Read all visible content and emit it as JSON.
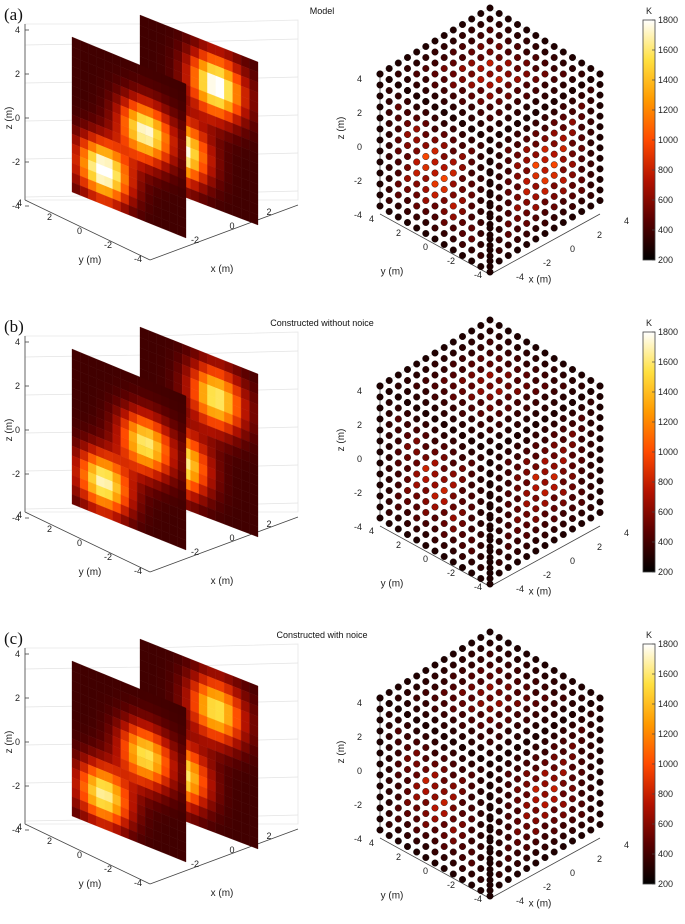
{
  "colors": {
    "colormap": [
      "#000000",
      "#5a0000",
      "#b41200",
      "#ff4a00",
      "#ff9a00",
      "#ffe040",
      "#ffffff"
    ]
  },
  "chart_data": [
    {
      "type": "heatmap",
      "panel_label": "(a)",
      "title": "Model",
      "slices": {
        "xlabel": "x (m)",
        "ylabel": "y (m)",
        "zlabel": "z (m)",
        "xticks": [
          "-2",
          "0",
          "2"
        ],
        "yticks": [
          "4",
          "2",
          "0",
          "-2",
          "-4"
        ],
        "zticks": [
          "4",
          "2",
          "0",
          "-2",
          "-4"
        ],
        "hot_spots": [
          {
            "slice": "back",
            "u": 0.65,
            "v": 0.25,
            "peak_K": 1750
          },
          {
            "slice": "back",
            "u": 0.35,
            "v": 0.72,
            "peak_K": 1700
          },
          {
            "slice": "front",
            "u": 0.65,
            "v": 0.42,
            "peak_K": 1650
          },
          {
            "slice": "front",
            "u": 0.28,
            "v": 0.78,
            "peak_K": 1800
          }
        ]
      },
      "cube": {
        "xlabel": "x (m)",
        "ylabel": "y (m)",
        "zlabel": "z (m)",
        "xticks": [
          "4",
          "2",
          "0",
          "-2",
          "-4"
        ],
        "yticks": [
          "4",
          "2",
          "0",
          "-2",
          "-4"
        ],
        "zticks": [
          "4",
          "2",
          "0",
          "-2",
          "-4"
        ]
      },
      "colorbar": {
        "unit": "K",
        "ticks": [
          "1800",
          "1600",
          "1400",
          "1200",
          "1000",
          "800",
          "600",
          "400",
          "200"
        ],
        "min": 200,
        "max": 1800
      }
    },
    {
      "type": "heatmap",
      "panel_label": "(b)",
      "title": "Constructed without noice",
      "slices": {
        "xlabel": "x (m)",
        "ylabel": "y (m)",
        "zlabel": "z (m)",
        "xticks": [
          "-2",
          "0",
          "2"
        ],
        "yticks": [
          "4",
          "2",
          "0",
          "-2",
          "-4"
        ],
        "zticks": [
          "4",
          "2",
          "0",
          "-2",
          "-4"
        ],
        "hot_spots": [
          {
            "slice": "back",
            "u": 0.65,
            "v": 0.25,
            "peak_K": 1500
          },
          {
            "slice": "back",
            "u": 0.35,
            "v": 0.72,
            "peak_K": 1550
          },
          {
            "slice": "front",
            "u": 0.65,
            "v": 0.42,
            "peak_K": 1500
          },
          {
            "slice": "front",
            "u": 0.28,
            "v": 0.78,
            "peak_K": 1600
          }
        ]
      },
      "cube": {
        "xlabel": "x (m)",
        "ylabel": "y (m)",
        "zlabel": "z (m)",
        "xticks": [
          "4",
          "2",
          "0",
          "-2",
          "-4"
        ],
        "yticks": [
          "4",
          "2",
          "0",
          "-2",
          "-4"
        ],
        "zticks": [
          "4",
          "2",
          "0",
          "-2",
          "-4"
        ]
      },
      "colorbar": {
        "unit": "K",
        "ticks": [
          "1800",
          "1600",
          "1400",
          "1200",
          "1000",
          "800",
          "600",
          "400",
          "200"
        ],
        "min": 200,
        "max": 1800
      }
    },
    {
      "type": "heatmap",
      "panel_label": "(c)",
      "title": "Constructed with noice",
      "slices": {
        "xlabel": "x (m)",
        "ylabel": "y (m)",
        "zlabel": "z (m)",
        "xticks": [
          "-2",
          "0",
          "2"
        ],
        "yticks": [
          "4",
          "2",
          "0",
          "-2",
          "-4"
        ],
        "zticks": [
          "4",
          "2",
          "0",
          "-2",
          "-4"
        ],
        "hot_spots": [
          {
            "slice": "back",
            "u": 0.65,
            "v": 0.25,
            "peak_K": 1450
          },
          {
            "slice": "back",
            "u": 0.35,
            "v": 0.72,
            "peak_K": 1500
          },
          {
            "slice": "front",
            "u": 0.65,
            "v": 0.42,
            "peak_K": 1450
          },
          {
            "slice": "front",
            "u": 0.28,
            "v": 0.78,
            "peak_K": 1550
          }
        ]
      },
      "cube": {
        "xlabel": "x (m)",
        "ylabel": "y (m)",
        "zlabel": "z (m)",
        "xticks": [
          "4",
          "2",
          "0",
          "-2",
          "-4"
        ],
        "yticks": [
          "4",
          "2",
          "0",
          "-2",
          "-4"
        ],
        "zticks": [
          "4",
          "2",
          "0",
          "-2",
          "-4"
        ]
      },
      "colorbar": {
        "unit": "K",
        "ticks": [
          "1800",
          "1600",
          "1400",
          "1200",
          "1000",
          "800",
          "600",
          "400",
          "200"
        ],
        "min": 200,
        "max": 1800
      }
    }
  ]
}
